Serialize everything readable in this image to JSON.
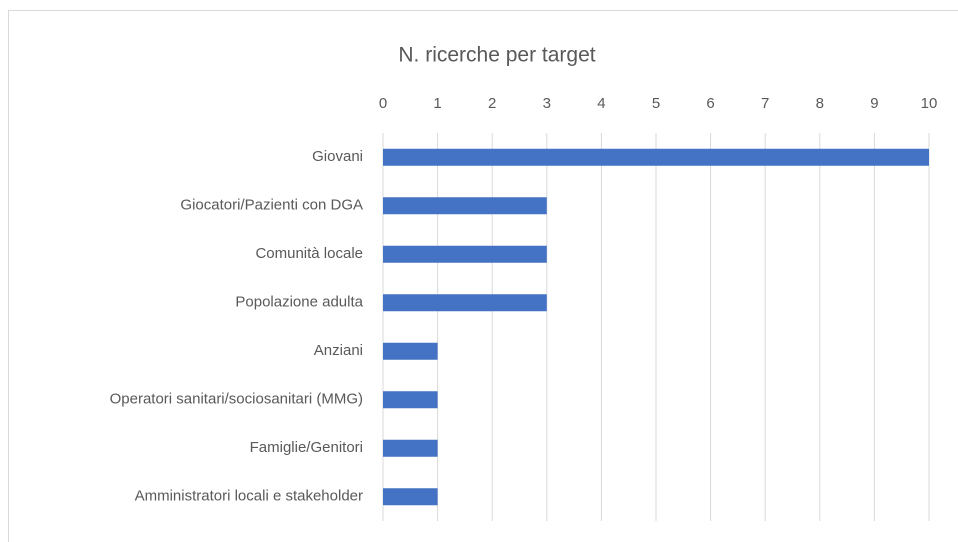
{
  "chart_data": {
    "type": "bar",
    "orientation": "horizontal",
    "title": "N. ricerche per target",
    "categories": [
      "Giovani",
      "Giocatori/Pazienti con DGA",
      "Comunità locale",
      "Popolazione adulta",
      "Anziani",
      "Operatori sanitari/sociosanitari (MMG)",
      "Famiglie/Genitori",
      "Amministratori locali e stakeholder"
    ],
    "values": [
      10,
      3,
      3,
      3,
      1,
      1,
      1,
      1
    ],
    "color": "#4472c4",
    "xlim": [
      0,
      10
    ],
    "xticks": [
      0,
      1,
      2,
      3,
      4,
      5,
      6,
      7,
      8,
      9,
      10
    ],
    "grid": true
  }
}
